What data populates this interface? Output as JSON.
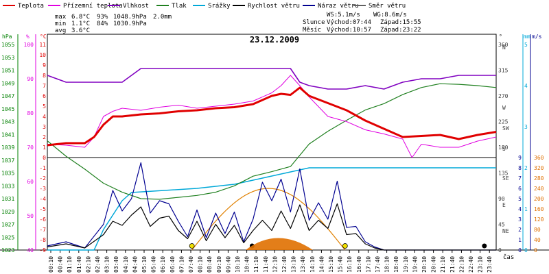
{
  "chart_data": {
    "type": "line",
    "title": "23.12.2009",
    "legend": [
      {
        "label": "Teplota",
        "color": "#e00000"
      },
      {
        "label": "Přízemní teplota",
        "color": "#e000e0"
      },
      {
        "label": "Vlhkost",
        "color": "#8000c0"
      },
      {
        "label": "Tlak",
        "color": "#208020"
      },
      {
        "label": "Srážky",
        "color": "#00a8d8"
      },
      {
        "label": "Rychlost větru",
        "color": "#000000"
      },
      {
        "label": "Náraz větru",
        "color": "#000090"
      },
      {
        "label": "Směr větru",
        "color": "#606060"
      }
    ],
    "stats": {
      "max_label": "max",
      "max_temp": "6.8°C",
      "max_hum": "93%",
      "max_press": "1048.9hPa",
      "max_rain": "2.0mm",
      "min_label": "min",
      "min_temp": "1.1°C",
      "min_hum": "84%",
      "min_press": "1030.9hPa",
      "avg_label": "avg",
      "avg_temp": "3.6°C"
    },
    "wind_info": {
      "ws": "WS:5.1m/s",
      "wg": "WG:8.6m/s"
    },
    "sun": {
      "label": "Slunce",
      "rise": "Východ:07:44",
      "set": "Západ:15:55"
    },
    "moon": {
      "label": "Měsíc",
      "rise": "Východ:10:57",
      "set": "Západ:23:22"
    },
    "axis_units": {
      "hpa": "hPa",
      "percent": "%",
      "celsius": "°C",
      "deg": "°",
      "mm": "mm",
      "ms": "m/s",
      "time": "čas"
    },
    "hpa_ticks": [
      "1055",
      "1053",
      "1051",
      "1049",
      "1047",
      "1045",
      "1043",
      "1041",
      "1039",
      "1037",
      "1035",
      "1033",
      "1031",
      "1029",
      "1027",
      "1025",
      "1023"
    ],
    "pct_ticks": [
      "100",
      "90",
      "80",
      "70",
      "60",
      "50",
      "40"
    ],
    "temp_ticks": [
      "11",
      "10",
      "9",
      "8",
      "7",
      "6",
      "5",
      "4",
      "3",
      "2",
      "1",
      "0",
      "-1",
      "-2",
      "-3",
      "-4",
      "-5",
      "-6",
      "-7",
      "-8",
      "-9"
    ],
    "dir_ticks": [
      "360",
      "315",
      "270",
      "225",
      "180",
      "135",
      "90",
      "45",
      "0"
    ],
    "dir_names": [
      "N",
      "W",
      "SW",
      "S",
      "SE",
      "E",
      "NE"
    ],
    "mm_ticks": [
      "5",
      "4",
      "3",
      "2",
      "1",
      "0"
    ],
    "ms_ticks": [
      "9",
      "8",
      "7",
      "6",
      "5",
      "4",
      "3",
      "2",
      "1",
      "0"
    ],
    "sun_ticks": [
      "360",
      "320",
      "280",
      "240",
      "200",
      "160",
      "120",
      "80",
      "40",
      "0"
    ],
    "x_ticks": [
      "00:10",
      "00:40",
      "01:10",
      "01:40",
      "02:10",
      "02:40",
      "03:10",
      "03:40",
      "04:10",
      "04:40",
      "05:10",
      "05:40",
      "06:10",
      "06:40",
      "07:10",
      "07:40",
      "08:10",
      "08:40",
      "09:10",
      "09:40",
      "10:10",
      "10:40",
      "11:10",
      "11:40",
      "12:10",
      "12:40",
      "13:10",
      "13:40",
      "14:10",
      "14:40",
      "15:10",
      "15:40",
      "16:10",
      "16:40",
      "17:10",
      "17:40",
      "18:10",
      "18:40",
      "19:10",
      "19:40",
      "20:10",
      "20:40",
      "21:10",
      "21:40",
      "22:10",
      "22:40",
      "23:10",
      "23:40"
    ],
    "x_range_hours": [
      0,
      24
    ],
    "series": [
      {
        "name": "Teplota",
        "color": "#e00000",
        "x": [
          0,
          1,
          2,
          2.5,
          3,
          3.5,
          4,
          5,
          6,
          7,
          8,
          9,
          10,
          11,
          11.5,
          12,
          12.5,
          13,
          13.5,
          14,
          15,
          16,
          17,
          18,
          19,
          20,
          21,
          22,
          23,
          24
        ],
        "y": [
          1.2,
          1.4,
          1.4,
          2.0,
          3.2,
          4.0,
          4.0,
          4.2,
          4.3,
          4.5,
          4.6,
          4.8,
          4.9,
          5.2,
          5.6,
          6.0,
          6.2,
          6.1,
          6.8,
          6.0,
          5.3,
          4.6,
          3.6,
          2.8,
          2.0,
          2.1,
          2.2,
          1.8,
          2.2,
          2.5
        ]
      },
      {
        "name": "Přízemní teplota",
        "color": "#e000e0",
        "x": [
          0,
          1,
          2,
          2.5,
          3,
          3.5,
          4,
          5,
          6,
          7,
          8,
          9,
          10,
          11,
          12,
          12.5,
          13,
          13.5,
          14,
          15,
          16,
          17,
          18,
          19,
          19.5,
          20,
          21,
          22,
          23,
          24
        ],
        "y": [
          1.3,
          1.2,
          1.0,
          2.0,
          4.0,
          4.5,
          4.8,
          4.6,
          4.9,
          5.1,
          4.8,
          5.0,
          5.2,
          5.5,
          6.3,
          7.0,
          8.0,
          7.0,
          5.9,
          4.0,
          3.5,
          2.7,
          2.3,
          1.8,
          0.0,
          1.3,
          1.0,
          1.0,
          1.6,
          2.0
        ]
      },
      {
        "name": "Vlhkost",
        "color": "#8000c0",
        "x": [
          0,
          1,
          2,
          3,
          4,
          5,
          6,
          7,
          8,
          9,
          10,
          11,
          12,
          13,
          13.5,
          14,
          15,
          16,
          17,
          18,
          19,
          20,
          21,
          22,
          23,
          24
        ],
        "y": [
          91,
          89,
          89,
          89,
          89,
          93,
          93,
          93,
          93,
          93,
          93,
          93,
          93,
          93,
          89,
          88,
          87,
          87,
          88,
          87,
          89,
          90,
          90,
          91,
          91,
          91
        ]
      },
      {
        "name": "Tlak",
        "color": "#208020",
        "x": [
          0,
          1,
          2,
          3,
          4,
          5,
          6,
          7,
          8,
          9,
          10,
          11,
          12,
          13,
          14,
          15,
          16,
          17,
          18,
          19,
          20,
          21,
          22,
          23,
          24
        ],
        "y": [
          1040,
          1037.6,
          1035.6,
          1033.4,
          1032,
          1031.0,
          1030.9,
          1031.2,
          1031.5,
          1032,
          1033,
          1034.5,
          1035.2,
          1036,
          1039.5,
          1041.5,
          1043.2,
          1044.8,
          1045.8,
          1047.2,
          1048.3,
          1048.9,
          1048.8,
          1048.6,
          1048.3
        ]
      },
      {
        "name": "Srážky",
        "color": "#00a8d8",
        "x": [
          0,
          2.5,
          3,
          4,
          4.5,
          8,
          9,
          10,
          11,
          12,
          13,
          14,
          15,
          16,
          17,
          24
        ],
        "y": [
          0,
          0,
          0.5,
          1.2,
          1.4,
          1.5,
          1.55,
          1.6,
          1.7,
          1.8,
          1.9,
          2.0,
          2.0,
          2.0,
          2.0,
          2.0
        ]
      },
      {
        "name": "Rychlost větru",
        "color": "#000000",
        "x": [
          0,
          1,
          2,
          3,
          3.5,
          4,
          4.5,
          5,
          5.5,
          6,
          6.5,
          7,
          7.5,
          8,
          8.5,
          9,
          9.5,
          10,
          10.5,
          11,
          11.5,
          12,
          12.5,
          13,
          13.5,
          14,
          14.5,
          15,
          15.5,
          16,
          16.5,
          17,
          17.5,
          18,
          24
        ],
        "y": [
          0.3,
          0.6,
          0.2,
          1.5,
          2.8,
          2.4,
          3.4,
          4.2,
          2.3,
          3.1,
          3.3,
          1.9,
          1.1,
          2.8,
          0.9,
          2.5,
          1.2,
          2.4,
          0.7,
          1.9,
          2.9,
          1.9,
          3.8,
          2.1,
          4.4,
          1.9,
          2.9,
          2.1,
          4.5,
          1.5,
          1.6,
          0.6,
          0.2,
          0,
          0
        ]
      },
      {
        "name": "Náraz větru",
        "color": "#000090",
        "x": [
          0,
          1,
          2,
          3,
          3.5,
          4,
          4.5,
          5,
          5.5,
          6,
          6.5,
          7,
          7.5,
          8,
          8.5,
          9,
          9.5,
          10,
          10.5,
          11,
          11.5,
          12,
          12.5,
          13,
          13.5,
          14,
          14.5,
          15,
          15.5,
          16,
          16.5,
          17,
          17.5,
          18,
          24
        ],
        "y": [
          0.4,
          0.8,
          0.2,
          2.5,
          5.8,
          3.8,
          5.0,
          8.5,
          3.6,
          4.8,
          4.5,
          2.8,
          1.3,
          3.9,
          1.2,
          3.6,
          1.6,
          3.7,
          0.8,
          3.0,
          6.6,
          4.8,
          6.9,
          3.7,
          7.9,
          2.9,
          4.6,
          3.0,
          6.7,
          2.2,
          2.3,
          0.8,
          0.3,
          0,
          0
        ]
      }
    ],
    "sun_elevation_curve": {
      "rise": 7.73,
      "set": 15.92,
      "peak_deg": 240
    },
    "ylim": {
      "hpa": [
        1023,
        1056
      ],
      "percent": [
        40,
        100
      ],
      "celsius": [
        -9,
        11
      ],
      "direction": [
        0,
        360
      ]
    }
  }
}
